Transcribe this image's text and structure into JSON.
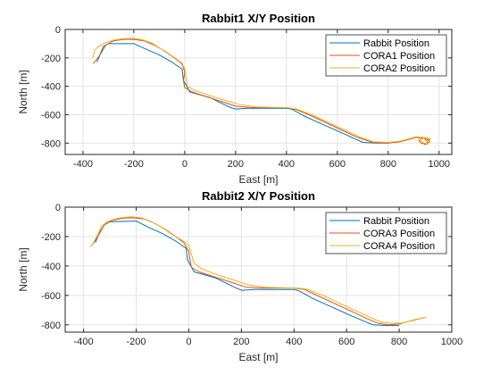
{
  "chart_data": [
    {
      "type": "line",
      "title": "Rabbit1 X/Y Position",
      "xlabel": "East [m]",
      "ylabel": "North [m]",
      "xlim": [
        -470,
        1050
      ],
      "ylim": [
        -880,
        0
      ],
      "xticks": [
        -400,
        -200,
        0,
        200,
        400,
        600,
        800,
        1000
      ],
      "yticks": [
        0,
        -200,
        -400,
        -600,
        -800
      ],
      "grid": true,
      "legend": "top-right",
      "series": [
        {
          "name": "Rabbit Position",
          "color": "#0072BD",
          "x": [
            -345,
            -320,
            -300,
            -200,
            -150,
            -100,
            -50,
            -10,
            -5,
            5,
            20,
            100,
            180,
            200,
            250,
            300,
            350,
            400,
            420,
            470,
            520,
            570,
            620,
            700,
            750,
            800
          ],
          "y": [
            -230,
            -120,
            -100,
            -100,
            -140,
            -180,
            -230,
            -280,
            -360,
            -390,
            -440,
            -480,
            -550,
            -560,
            -555,
            -555,
            -555,
            -555,
            -560,
            -610,
            -650,
            -690,
            -730,
            -795,
            -800,
            -800
          ]
        },
        {
          "name": "CORA1 Position",
          "color": "#D95319",
          "x": [
            -360,
            -350,
            -330,
            -310,
            -280,
            -240,
            -200,
            -160,
            -120,
            -80,
            -40,
            -10,
            0,
            -5,
            0,
            30,
            80,
            150,
            200,
            260,
            330,
            400,
            440,
            500,
            560,
            620,
            680,
            740,
            800,
            850,
            880,
            910,
            940,
            955,
            950,
            930,
            920,
            940,
            960,
            960
          ],
          "y": [
            -240,
            -220,
            -170,
            -110,
            -80,
            -70,
            -70,
            -80,
            -110,
            -150,
            -200,
            -240,
            -300,
            -360,
            -410,
            -440,
            -470,
            -510,
            -540,
            -550,
            -550,
            -550,
            -565,
            -610,
            -660,
            -710,
            -760,
            -795,
            -800,
            -790,
            -775,
            -760,
            -765,
            -790,
            -810,
            -800,
            -780,
            -765,
            -775,
            -800
          ]
        },
        {
          "name": "CORA2 Position",
          "color": "#EDB120",
          "x": [
            -360,
            -355,
            -345,
            -320,
            -280,
            -240,
            -200,
            -170,
            -130,
            -90,
            -50,
            -20,
            0,
            5,
            10,
            40,
            90,
            160,
            220,
            280,
            340,
            400,
            440,
            500,
            560,
            620,
            680,
            740,
            800,
            850,
            880,
            910,
            940,
            960,
            955,
            935,
            925,
            945,
            965,
            965
          ],
          "y": [
            -200,
            -150,
            -130,
            -100,
            -75,
            -65,
            -62,
            -70,
            -95,
            -140,
            -190,
            -230,
            -270,
            -340,
            -400,
            -430,
            -460,
            -500,
            -530,
            -545,
            -548,
            -550,
            -560,
            -600,
            -650,
            -700,
            -750,
            -790,
            -795,
            -785,
            -770,
            -755,
            -760,
            -785,
            -805,
            -795,
            -775,
            -760,
            -770,
            -795
          ]
        }
      ]
    },
    {
      "type": "line",
      "title": "Rabbit2 X/Y Position",
      "xlabel": "East [m]",
      "ylabel": "North [m]",
      "xlim": [
        -470,
        1000
      ],
      "ylim": [
        -850,
        0
      ],
      "xticks": [
        -400,
        -200,
        0,
        200,
        400,
        600,
        800,
        1000
      ],
      "yticks": [
        0,
        -200,
        -400,
        -600,
        -800
      ],
      "grid": true,
      "legend": "top-right",
      "series": [
        {
          "name": "Rabbit Position",
          "color": "#0072BD",
          "x": [
            -355,
            -330,
            -310,
            -200,
            -150,
            -100,
            -50,
            -10,
            -5,
            5,
            20,
            100,
            180,
            200,
            250,
            300,
            350,
            400,
            420,
            470,
            520,
            570,
            620,
            700,
            750,
            800
          ],
          "y": [
            -240,
            -130,
            -100,
            -95,
            -140,
            -180,
            -230,
            -280,
            -360,
            -390,
            -440,
            -480,
            -550,
            -565,
            -560,
            -560,
            -560,
            -560,
            -570,
            -620,
            -660,
            -700,
            -740,
            -800,
            -805,
            -805
          ]
        },
        {
          "name": "CORA3 Position",
          "color": "#D95319",
          "x": [
            -370,
            -360,
            -340,
            -320,
            -290,
            -250,
            -210,
            -170,
            -130,
            -90,
            -50,
            -20,
            0,
            5,
            10,
            40,
            90,
            160,
            220,
            280,
            340,
            400,
            440,
            500,
            560,
            620,
            680,
            720,
            760,
            800,
            850,
            900
          ],
          "y": [
            -260,
            -240,
            -180,
            -120,
            -90,
            -75,
            -72,
            -80,
            -110,
            -150,
            -200,
            -240,
            -300,
            -360,
            -410,
            -440,
            -470,
            -510,
            -545,
            -550,
            -550,
            -550,
            -560,
            -610,
            -660,
            -710,
            -760,
            -790,
            -800,
            -795,
            -770,
            -750
          ]
        },
        {
          "name": "CORA4 Position",
          "color": "#EDB120",
          "x": [
            -375,
            -365,
            -350,
            -330,
            -300,
            -260,
            -220,
            -180,
            -140,
            -100,
            -60,
            -20,
            0,
            10,
            20,
            50,
            100,
            170,
            230,
            290,
            350,
            410,
            450,
            510,
            570,
            630,
            690,
            730,
            770,
            810,
            860,
            900
          ],
          "y": [
            -270,
            -250,
            -200,
            -130,
            -90,
            -72,
            -65,
            -72,
            -100,
            -140,
            -190,
            -230,
            -260,
            -320,
            -380,
            -420,
            -455,
            -495,
            -530,
            -545,
            -548,
            -550,
            -558,
            -600,
            -650,
            -700,
            -750,
            -780,
            -790,
            -788,
            -768,
            -748
          ]
        }
      ]
    }
  ]
}
